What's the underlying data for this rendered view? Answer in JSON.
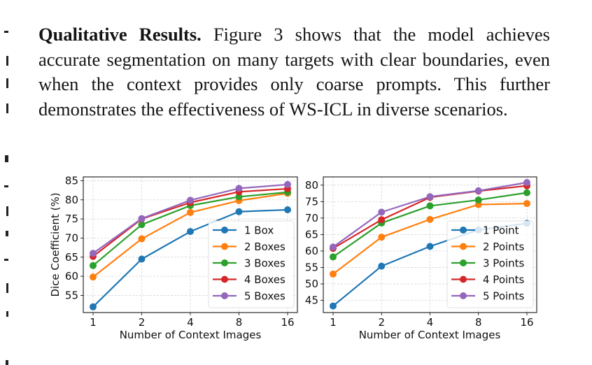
{
  "paragraph": {
    "heading": "Qualitative Results.",
    "body": " Figure 3 shows that the model achieves accurate segmentation on many targets with clear boundaries, even when the context provides only coarse prompts.  This further demonstrates the effectiveness of WS-ICL in diverse scenarios."
  },
  "colors": {
    "series": [
      "#1f77b4",
      "#ff7f0e",
      "#2ca02c",
      "#d62728",
      "#9467bd"
    ]
  },
  "chart_data": [
    {
      "type": "line",
      "title": "",
      "xlabel": "Number of Context Images",
      "ylabel": "Dice Coefficient (%)",
      "x_scale": "log2",
      "categories": [
        "1",
        "2",
        "4",
        "8",
        "16"
      ],
      "x": [
        1,
        2,
        4,
        8,
        16
      ],
      "ylim": [
        50.5,
        86
      ],
      "yticks": [
        "55",
        "60",
        "65",
        "70",
        "75",
        "80",
        "85"
      ],
      "ytick_values": [
        55,
        60,
        65,
        70,
        75,
        80,
        85
      ],
      "grid": true,
      "legend": "lower-right",
      "series": [
        {
          "name": "1 Box",
          "values": [
            52.0,
            64.5,
            71.7,
            76.9,
            77.4
          ]
        },
        {
          "name": "2 Boxes",
          "values": [
            59.8,
            69.8,
            76.7,
            79.8,
            81.7
          ]
        },
        {
          "name": "3 Boxes",
          "values": [
            62.8,
            73.5,
            78.5,
            80.8,
            82.0
          ]
        },
        {
          "name": "4 Boxes",
          "values": [
            65.2,
            75.0,
            79.3,
            82.1,
            82.9
          ]
        },
        {
          "name": "5 Boxes",
          "values": [
            66.0,
            75.1,
            79.9,
            83.0,
            84.0
          ]
        }
      ]
    },
    {
      "type": "line",
      "title": "",
      "xlabel": "Number of Context Images",
      "ylabel": "",
      "x_scale": "log2",
      "categories": [
        "1",
        "2",
        "4",
        "8",
        "16"
      ],
      "x": [
        1,
        2,
        4,
        8,
        16
      ],
      "ylim": [
        41.3,
        82.5
      ],
      "yticks": [
        "45",
        "50",
        "55",
        "60",
        "65",
        "70",
        "75",
        "80"
      ],
      "ytick_values": [
        45,
        50,
        55,
        60,
        65,
        70,
        75,
        80
      ],
      "grid": true,
      "legend": "lower-right",
      "series": [
        {
          "name": "1 Point",
          "values": [
            43.3,
            55.4,
            61.4,
            66.4,
            68.4
          ]
        },
        {
          "name": "2 Points",
          "values": [
            53.0,
            64.2,
            69.6,
            74.1,
            74.4
          ]
        },
        {
          "name": "3 Points",
          "values": [
            58.2,
            68.5,
            73.7,
            75.5,
            77.7
          ]
        },
        {
          "name": "4 Points",
          "values": [
            60.8,
            69.5,
            76.3,
            78.2,
            79.8
          ]
        },
        {
          "name": "5 Points",
          "values": [
            61.2,
            71.8,
            76.5,
            78.3,
            80.8
          ]
        }
      ]
    }
  ]
}
